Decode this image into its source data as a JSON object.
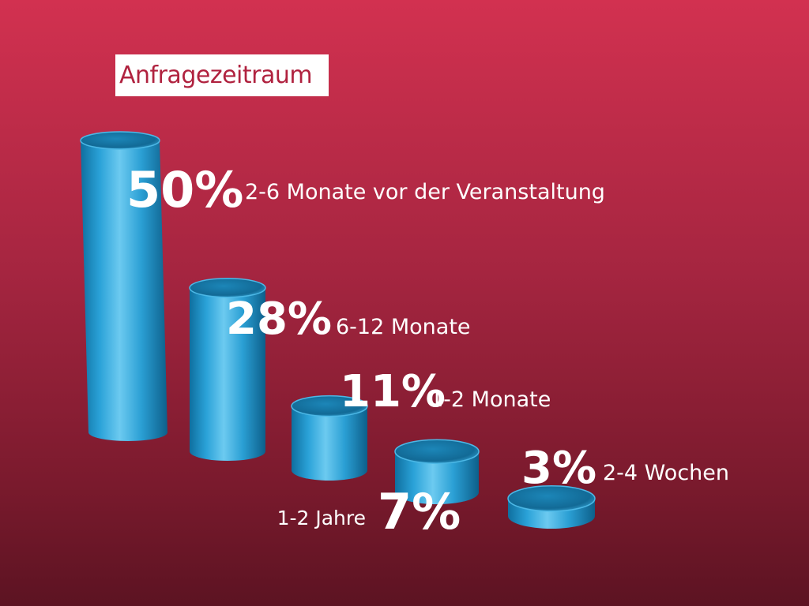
{
  "title": "Anfragezeitraum",
  "colors": {
    "bar": "#2ba3d8",
    "bar_dark": "#0e6e9c",
    "bar_light": "#7fd2f4",
    "text": "#ffffff"
  },
  "chart_data": {
    "type": "bar",
    "title": "Anfragezeitraum",
    "categories": [
      "1-2 Jahre",
      "2-6 Monate vor der Veranstaltung",
      "6-12 Monate",
      "1-2 Monate",
      "2-4 Wochen"
    ],
    "values": [
      7,
      50,
      28,
      11,
      3
    ],
    "value_labels": [
      "7%",
      "50%",
      "28%",
      "11%",
      "3%"
    ],
    "unit": "%",
    "style": "3d-cylinders",
    "ylim": [
      0,
      50
    ],
    "grid": false,
    "legend": "none"
  }
}
